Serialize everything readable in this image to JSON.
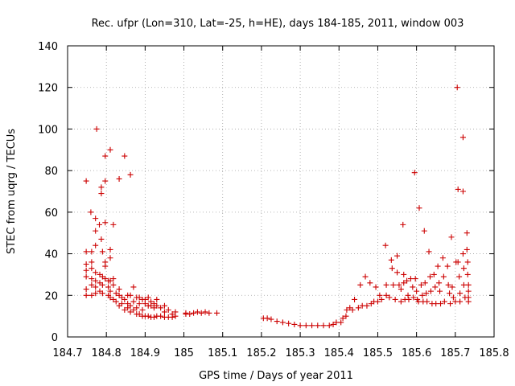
{
  "chart_data": {
    "type": "scatter",
    "title": "Rec. ufpr (Lon=310, Lat=-25, h=HE), days 184-185, 2011, window 003",
    "xlabel": "GPS time / Days of year 2011",
    "ylabel": "STEC from uqrg / TECUs",
    "xlim": [
      184.7,
      185.8
    ],
    "ylim": [
      0,
      140
    ],
    "xticks": [
      184.7,
      184.8,
      184.9,
      185.0,
      185.1,
      185.2,
      185.3,
      185.4,
      185.5,
      185.6,
      185.7,
      185.8
    ],
    "xtick_labels": [
      "184.7",
      "184.8",
      "184.9",
      "185",
      "185.1",
      "185.2",
      "185.3",
      "185.4",
      "185.5",
      "185.6",
      "185.7",
      "185.8"
    ],
    "yticks": [
      0,
      20,
      40,
      60,
      80,
      100,
      120,
      140
    ],
    "ytick_labels": [
      "0",
      "20",
      "40",
      "60",
      "80",
      "100",
      "120",
      "140"
    ],
    "grid": true,
    "marker": "+",
    "color": "#cc0000",
    "series": [
      {
        "name": "STEC",
        "points": [
          [
            184.748,
            75
          ],
          [
            184.748,
            41
          ],
          [
            184.748,
            35
          ],
          [
            184.748,
            32
          ],
          [
            184.748,
            29
          ],
          [
            184.748,
            23
          ],
          [
            184.748,
            20
          ],
          [
            184.76,
            60
          ],
          [
            184.762,
            41
          ],
          [
            184.762,
            36
          ],
          [
            184.762,
            33
          ],
          [
            184.762,
            28
          ],
          [
            184.762,
            25
          ],
          [
            184.762,
            20
          ],
          [
            184.772,
            57
          ],
          [
            184.772,
            51
          ],
          [
            184.772,
            44
          ],
          [
            184.772,
            31
          ],
          [
            184.772,
            27
          ],
          [
            184.772,
            24
          ],
          [
            184.772,
            21
          ],
          [
            184.775,
            100
          ],
          [
            184.782,
            54
          ],
          [
            184.783,
            30
          ],
          [
            184.783,
            26
          ],
          [
            184.783,
            22
          ],
          [
            184.787,
            72
          ],
          [
            184.787,
            69
          ],
          [
            184.787,
            47
          ],
          [
            184.79,
            41
          ],
          [
            184.79,
            29
          ],
          [
            184.79,
            25
          ],
          [
            184.79,
            21
          ],
          [
            184.797,
            87
          ],
          [
            184.797,
            75
          ],
          [
            184.797,
            55
          ],
          [
            184.797,
            36
          ],
          [
            184.797,
            34
          ],
          [
            184.797,
            28
          ],
          [
            184.805,
            27
          ],
          [
            184.805,
            24
          ],
          [
            184.805,
            20
          ],
          [
            184.81,
            90
          ],
          [
            184.81,
            42
          ],
          [
            184.81,
            38
          ],
          [
            184.81,
            27
          ],
          [
            184.81,
            22
          ],
          [
            184.81,
            19
          ],
          [
            184.818,
            54
          ],
          [
            184.818,
            28
          ],
          [
            184.818,
            25
          ],
          [
            184.818,
            18
          ],
          [
            184.825,
            21
          ],
          [
            184.825,
            17
          ],
          [
            184.833,
            76
          ],
          [
            184.833,
            23
          ],
          [
            184.833,
            20
          ],
          [
            184.833,
            15
          ],
          [
            184.84,
            19
          ],
          [
            184.84,
            16
          ],
          [
            184.847,
            87
          ],
          [
            184.847,
            18
          ],
          [
            184.847,
            13
          ],
          [
            184.855,
            20
          ],
          [
            184.855,
            16
          ],
          [
            184.855,
            14
          ],
          [
            184.862,
            78
          ],
          [
            184.862,
            20
          ],
          [
            184.862,
            15
          ],
          [
            184.862,
            12
          ],
          [
            184.87,
            24
          ],
          [
            184.87,
            17
          ],
          [
            184.87,
            13
          ],
          [
            184.878,
            19
          ],
          [
            184.878,
            14
          ],
          [
            184.878,
            11
          ],
          [
            184.885,
            19
          ],
          [
            184.885,
            16
          ],
          [
            184.885,
            11
          ],
          [
            184.893,
            18
          ],
          [
            184.893,
            13
          ],
          [
            184.893,
            10
          ],
          [
            184.9,
            18
          ],
          [
            184.9,
            16
          ],
          [
            184.9,
            10
          ],
          [
            184.908,
            19
          ],
          [
            184.908,
            15
          ],
          [
            184.908,
            10
          ],
          [
            184.915,
            17
          ],
          [
            184.915,
            15
          ],
          [
            184.915,
            9.5
          ],
          [
            184.923,
            16
          ],
          [
            184.923,
            14
          ],
          [
            184.923,
            9.5
          ],
          [
            184.93,
            18
          ],
          [
            184.93,
            15
          ],
          [
            184.93,
            10
          ],
          [
            184.94,
            14
          ],
          [
            184.94,
            10
          ],
          [
            184.95,
            15
          ],
          [
            184.95,
            12
          ],
          [
            184.95,
            9.5
          ],
          [
            184.96,
            13
          ],
          [
            184.96,
            9.5
          ],
          [
            184.97,
            11
          ],
          [
            184.97,
            9.5
          ],
          [
            184.978,
            12
          ],
          [
            184.978,
            10
          ],
          [
            185.005,
            11.5
          ],
          [
            185.005,
            11
          ],
          [
            185.015,
            11
          ],
          [
            185.025,
            11.5
          ],
          [
            185.035,
            12
          ],
          [
            185.045,
            11.5
          ],
          [
            185.055,
            12
          ],
          [
            185.065,
            11.5
          ],
          [
            185.085,
            11.5
          ],
          [
            185.205,
            9
          ],
          [
            185.215,
            9
          ],
          [
            185.225,
            8.5
          ],
          [
            185.24,
            7.5
          ],
          [
            185.255,
            7
          ],
          [
            185.27,
            6.5
          ],
          [
            185.285,
            6
          ],
          [
            185.3,
            5.5
          ],
          [
            185.315,
            5.5
          ],
          [
            185.33,
            5.5
          ],
          [
            185.345,
            5.5
          ],
          [
            185.36,
            5.5
          ],
          [
            185.375,
            5.5
          ],
          [
            185.385,
            6
          ],
          [
            185.393,
            7
          ],
          [
            185.405,
            7
          ],
          [
            185.41,
            9
          ],
          [
            185.418,
            10
          ],
          [
            185.42,
            13
          ],
          [
            185.428,
            14
          ],
          [
            185.435,
            13
          ],
          [
            185.44,
            18
          ],
          [
            185.45,
            14
          ],
          [
            185.455,
            25
          ],
          [
            185.46,
            15
          ],
          [
            185.468,
            29
          ],
          [
            185.472,
            15
          ],
          [
            185.48,
            26
          ],
          [
            185.483,
            16
          ],
          [
            185.49,
            17
          ],
          [
            185.495,
            24
          ],
          [
            185.5,
            17
          ],
          [
            185.505,
            20
          ],
          [
            185.51,
            18
          ],
          [
            185.52,
            44
          ],
          [
            185.522,
            25
          ],
          [
            185.522,
            20
          ],
          [
            185.53,
            19
          ],
          [
            185.535,
            37
          ],
          [
            185.537,
            33
          ],
          [
            185.54,
            25
          ],
          [
            185.545,
            18
          ],
          [
            185.55,
            39
          ],
          [
            185.55,
            31
          ],
          [
            185.555,
            25
          ],
          [
            185.56,
            23
          ],
          [
            185.56,
            17
          ],
          [
            185.565,
            54
          ],
          [
            185.567,
            30
          ],
          [
            185.567,
            26
          ],
          [
            185.57,
            18
          ],
          [
            185.575,
            27
          ],
          [
            185.578,
            20
          ],
          [
            185.58,
            18
          ],
          [
            185.585,
            28
          ],
          [
            185.59,
            24
          ],
          [
            185.592,
            19
          ],
          [
            185.595,
            79
          ],
          [
            185.597,
            28
          ],
          [
            185.6,
            22
          ],
          [
            185.602,
            18
          ],
          [
            185.605,
            17
          ],
          [
            185.607,
            62
          ],
          [
            185.612,
            25
          ],
          [
            185.615,
            20
          ],
          [
            185.617,
            17
          ],
          [
            185.62,
            51
          ],
          [
            185.622,
            26
          ],
          [
            185.625,
            21
          ],
          [
            185.627,
            17
          ],
          [
            185.632,
            41
          ],
          [
            185.635,
            29
          ],
          [
            185.637,
            22
          ],
          [
            185.64,
            16
          ],
          [
            185.645,
            30
          ],
          [
            185.648,
            24
          ],
          [
            185.65,
            16
          ],
          [
            185.655,
            34
          ],
          [
            185.658,
            26
          ],
          [
            185.66,
            22
          ],
          [
            185.662,
            16
          ],
          [
            185.668,
            38
          ],
          [
            185.67,
            29
          ],
          [
            185.672,
            17
          ],
          [
            185.68,
            34
          ],
          [
            185.682,
            25
          ],
          [
            185.685,
            21
          ],
          [
            185.687,
            16
          ],
          [
            185.69,
            48
          ],
          [
            185.692,
            24
          ],
          [
            185.695,
            19
          ],
          [
            185.7,
            17
          ],
          [
            185.702,
            36
          ],
          [
            185.705,
            120
          ],
          [
            185.707,
            71
          ],
          [
            185.707,
            36
          ],
          [
            185.71,
            29
          ],
          [
            185.712,
            21
          ],
          [
            185.712,
            17
          ],
          [
            185.72,
            96
          ],
          [
            185.72,
            70
          ],
          [
            185.72,
            40
          ],
          [
            185.722,
            33
          ],
          [
            185.722,
            25
          ],
          [
            185.725,
            19
          ],
          [
            185.73,
            50
          ],
          [
            185.73,
            42
          ],
          [
            185.732,
            36
          ],
          [
            185.732,
            30
          ],
          [
            185.734,
            25
          ],
          [
            185.734,
            22
          ],
          [
            185.734,
            19
          ],
          [
            185.734,
            17
          ]
        ]
      }
    ]
  }
}
